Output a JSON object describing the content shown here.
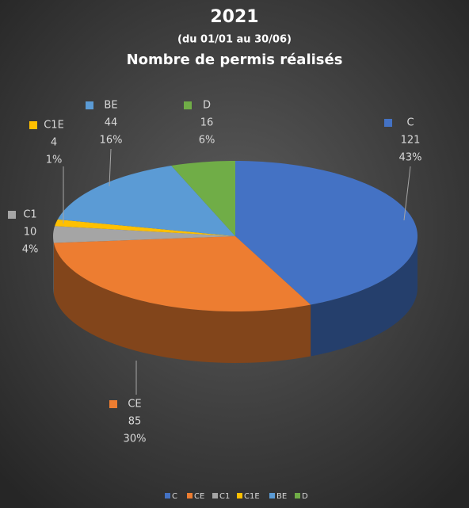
{
  "chart_data": {
    "type": "pie3d",
    "title": "2021",
    "subtitle": "(du 01/01 au 30/06)",
    "subtitle2": "Nombre de permis réalisés",
    "categories": [
      "C",
      "CE",
      "C1",
      "C1E",
      "BE",
      "D"
    ],
    "values": [
      121,
      85,
      10,
      4,
      44,
      16
    ],
    "percent_labels": [
      "43%",
      "30%",
      "4%",
      "1%",
      "16%",
      "6%"
    ],
    "colors": [
      "#4472c4",
      "#ed7d31",
      "#a5a5a5",
      "#ffc000",
      "#5b9bd5",
      "#70ad47"
    ],
    "legend": "bottom"
  }
}
